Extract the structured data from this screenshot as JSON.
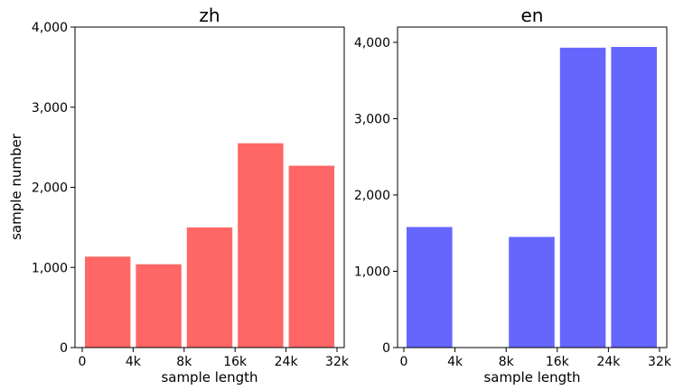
{
  "chart_data": [
    {
      "type": "bar",
      "title": "zh",
      "xlabel": "sample length",
      "ylabel": "sample number",
      "x_ticks": [
        "0",
        "4k",
        "8k",
        "16k",
        "24k",
        "32k"
      ],
      "y_ticks": [
        "0",
        "1,000",
        "2,000",
        "3,000",
        "4,000"
      ],
      "ylim": [
        0,
        4000
      ],
      "bar_color": "#ff6666",
      "bins": [
        {
          "from": 0,
          "to": 1,
          "value": 1135
        },
        {
          "from": 1,
          "to": 2,
          "value": 1040
        },
        {
          "from": 2,
          "to": 3,
          "value": 1500
        },
        {
          "from": 3,
          "to": 4,
          "value": 2550
        },
        {
          "from": 4,
          "to": 5,
          "value": 2270
        }
      ]
    },
    {
      "type": "bar",
      "title": "en",
      "xlabel": "sample length",
      "ylabel": "",
      "x_ticks": [
        "0",
        "4k",
        "8k",
        "16k",
        "24k",
        "32k"
      ],
      "y_ticks": [
        "0",
        "1,000",
        "2,000",
        "3,000",
        "4,000"
      ],
      "ylim": [
        0,
        4200
      ],
      "bar_color": "#6666ff",
      "bins": [
        {
          "from": 0,
          "to": 1,
          "value": 1580
        },
        {
          "from": 1,
          "to": 2,
          "value": 0
        },
        {
          "from": 2,
          "to": 3,
          "value": 1450
        },
        {
          "from": 3,
          "to": 4,
          "value": 3930
        },
        {
          "from": 4,
          "to": 5,
          "value": 3940
        }
      ]
    }
  ]
}
